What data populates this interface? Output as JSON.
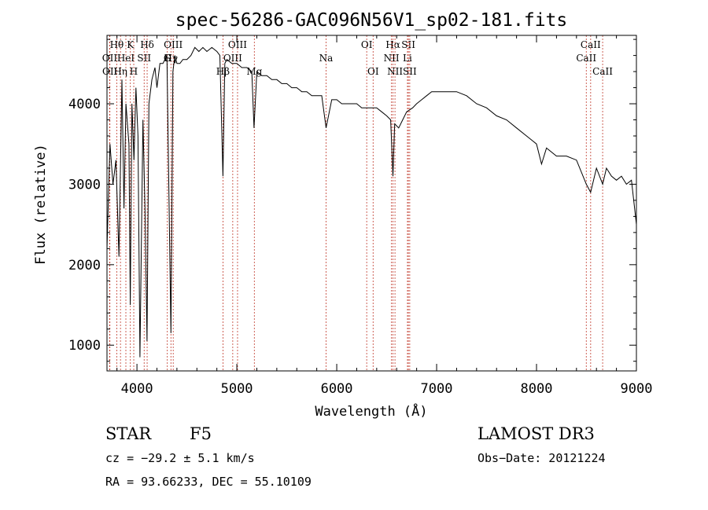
{
  "chart_data": {
    "type": "line",
    "title": "spec-56286-GAC096N56V1_sp02-181.fits",
    "xlabel": "Wavelength (Å)",
    "ylabel": "Flux (relative)",
    "xlim": [
      3700,
      9000
    ],
    "ylim": [
      680,
      4850
    ],
    "xticks": [
      4000,
      5000,
      6000,
      7000,
      8000,
      9000
    ],
    "yticks": [
      1000,
      2000,
      3000,
      4000
    ],
    "series": [
      {
        "name": "flux",
        "x": [
          3700,
          3730,
          3760,
          3790,
          3820,
          3850,
          3870,
          3890,
          3920,
          3933,
          3950,
          3970,
          3990,
          4010,
          4030,
          4060,
          4080,
          4101,
          4120,
          4150,
          4180,
          4200,
          4230,
          4260,
          4300,
          4340,
          4360,
          4380,
          4400,
          4430,
          4460,
          4500,
          4540,
          4580,
          4620,
          4660,
          4700,
          4750,
          4800,
          4830,
          4861,
          4880,
          4900,
          4950,
          5000,
          5050,
          5100,
          5150,
          5172,
          5200,
          5250,
          5300,
          5350,
          5400,
          5450,
          5500,
          5550,
          5600,
          5650,
          5700,
          5750,
          5800,
          5850,
          5893,
          5950,
          6000,
          6050,
          6100,
          6150,
          6200,
          6250,
          6300,
          6350,
          6400,
          6450,
          6500,
          6540,
          6563,
          6580,
          6620,
          6660,
          6700,
          6760,
          6800,
          6850,
          6900,
          6950,
          7000,
          7050,
          7100,
          7150,
          7200,
          7300,
          7400,
          7500,
          7600,
          7700,
          7800,
          7900,
          7950,
          8000,
          8050,
          8100,
          8200,
          8300,
          8400,
          8498,
          8542,
          8600,
          8662,
          8700,
          8750,
          8800,
          8850,
          8900,
          8950,
          9000
        ],
        "values": [
          2200,
          3500,
          3000,
          3300,
          2100,
          4300,
          2700,
          4000,
          3500,
          1500,
          4000,
          3300,
          4200,
          3600,
          850,
          3800,
          2700,
          1050,
          4000,
          4300,
          4450,
          4200,
          4500,
          4500,
          4600,
          1150,
          4400,
          4600,
          4500,
          4500,
          4550,
          4550,
          4600,
          4700,
          4650,
          4700,
          4650,
          4700,
          4650,
          4600,
          3100,
          4500,
          4550,
          4500,
          4500,
          4450,
          4450,
          4400,
          3700,
          4400,
          4350,
          4350,
          4300,
          4300,
          4250,
          4250,
          4200,
          4200,
          4150,
          4150,
          4100,
          4100,
          4100,
          3700,
          4050,
          4050,
          4000,
          4000,
          4000,
          4000,
          3950,
          3950,
          3950,
          3950,
          3900,
          3850,
          3800,
          3100,
          3750,
          3700,
          3800,
          3900,
          3950,
          4000,
          4050,
          4100,
          4150,
          4150,
          4150,
          4150,
          4150,
          4150,
          4100,
          4000,
          3950,
          3850,
          3800,
          3700,
          3600,
          3550,
          3500,
          3250,
          3450,
          3350,
          3350,
          3300,
          3000,
          2900,
          3200,
          3000,
          3200,
          3100,
          3050,
          3100,
          3000,
          3050,
          2500
        ]
      }
    ],
    "lines": [
      {
        "name": "Hθ",
        "wl": 3798,
        "row": 1
      },
      {
        "name": "OII",
        "wl": 3727,
        "row": 2
      },
      {
        "name": "OII",
        "wl": 3729,
        "row": 3
      },
      {
        "name": "HeI",
        "wl": 3889,
        "row": 2
      },
      {
        "name": "K",
        "wl": 3934,
        "row": 1
      },
      {
        "name": "SII",
        "wl": 4072,
        "row": 2
      },
      {
        "name": "Hη",
        "wl": 3835,
        "row": 3
      },
      {
        "name": "H",
        "wl": 3968,
        "row": 3
      },
      {
        "name": "Hδ",
        "wl": 4102,
        "row": 1
      },
      {
        "name": "OIII",
        "wl": 4363,
        "row": 1
      },
      {
        "name": "G",
        "wl": 4304,
        "row": 2
      },
      {
        "name": "Hγ",
        "wl": 4340,
        "row": 2
      },
      {
        "name": "OIII",
        "wl": 5007,
        "row": 1
      },
      {
        "name": "OIII",
        "wl": 4959,
        "row": 2
      },
      {
        "name": "Hβ",
        "wl": 4861,
        "row": 3
      },
      {
        "name": "Mg",
        "wl": 5175,
        "row": 3
      },
      {
        "name": "Na",
        "wl": 5893,
        "row": 2
      },
      {
        "name": "OI",
        "wl": 6300,
        "row": 1
      },
      {
        "name": "OI",
        "wl": 6364,
        "row": 3
      },
      {
        "name": "Hα",
        "wl": 6563,
        "row": 1
      },
      {
        "name": "SII",
        "wl": 6717,
        "row": 1
      },
      {
        "name": "NII",
        "wl": 6548,
        "row": 2
      },
      {
        "name": "Li",
        "wl": 6708,
        "row": 2
      },
      {
        "name": "NII",
        "wl": 6583,
        "row": 3
      },
      {
        "name": "SII",
        "wl": 6731,
        "row": 3
      },
      {
        "name": "CaII",
        "wl": 8542,
        "row": 1
      },
      {
        "name": "CaII",
        "wl": 8498,
        "row": 2
      },
      {
        "name": "CaII",
        "wl": 8662,
        "row": 3
      }
    ]
  },
  "info": {
    "object": "STAR",
    "subclass": "F5",
    "survey": "LAMOST DR3",
    "cz": "cz = −29.2 ± 5.1 km/s",
    "obs_date": "Obs−Date: 20121224",
    "coords": "RA =  93.66233, DEC =  55.10109"
  }
}
